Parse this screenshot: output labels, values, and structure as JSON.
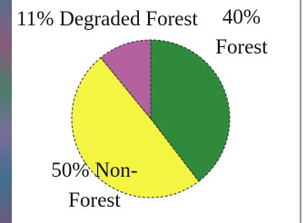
{
  "chart_data": {
    "type": "pie",
    "categories": [
      "Forest",
      "Non-Forest",
      "Degraded Forest"
    ],
    "values": [
      40,
      50,
      11
    ],
    "value_labels": [
      "40%",
      "50%",
      "11%"
    ],
    "colors": [
      "#2f8a3b",
      "#f4f442",
      "#b3619f"
    ]
  }
}
